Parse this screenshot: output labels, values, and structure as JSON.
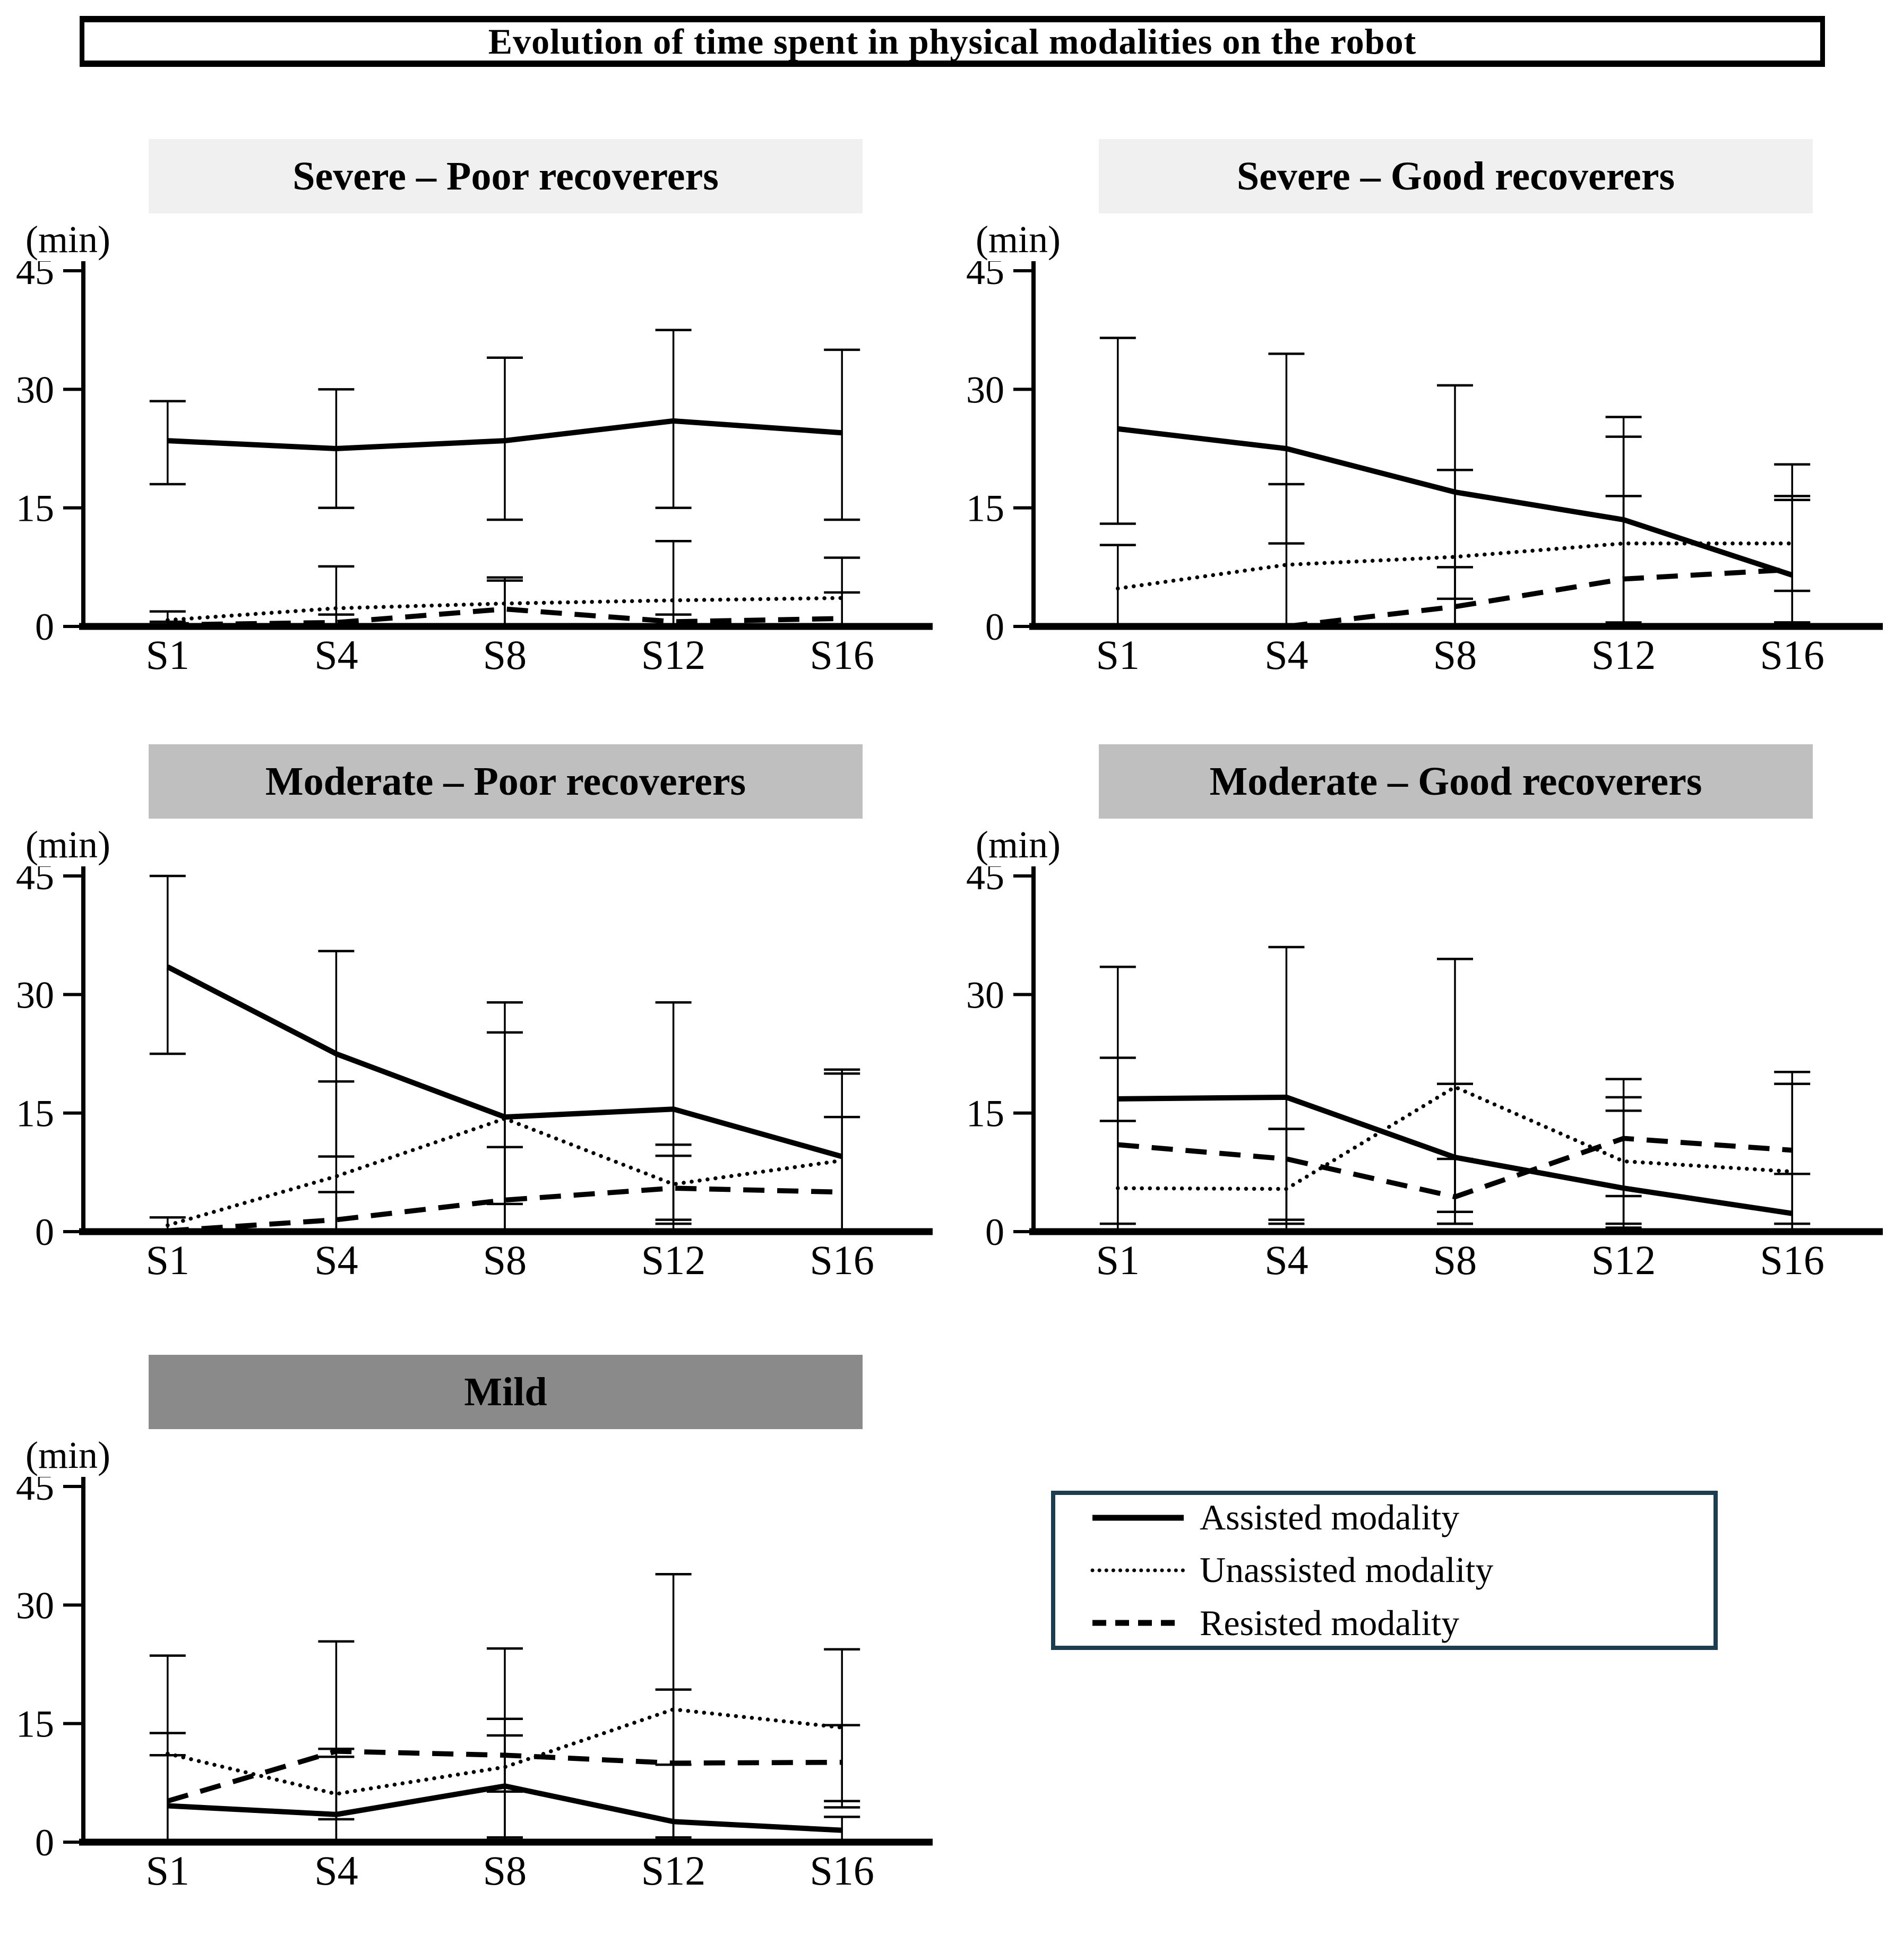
{
  "main_title": "Evolution of time spent in physical modalities on the robot",
  "y_axis": {
    "unit": "(min)",
    "ticks": [
      0,
      15,
      30,
      45
    ],
    "max": 45
  },
  "x_labels": [
    "S1",
    "S4",
    "S8",
    "S12",
    "S16"
  ],
  "colors": {
    "line": "#000000",
    "severe_title_bg": "#f0f0f0",
    "moderate_title_bg": "#bfbfbf",
    "mild_title_bg": "#8a8a8a",
    "legend_border": "#1c3c50"
  },
  "legend": {
    "items": [
      {
        "name": "assisted",
        "label": "Assisted modality",
        "line_style": "solid"
      },
      {
        "name": "unassisted",
        "label": "Unassisted modality",
        "line_style": "dotted"
      },
      {
        "name": "resisted",
        "label": "Resisted modality",
        "line_style": "dashed"
      }
    ]
  },
  "chart_data": [
    {
      "type": "line",
      "title": "Severe – Poor recoverers",
      "title_bg": "#f0f0f0",
      "xlabel": "",
      "ylabel": "(min)",
      "ylim": [
        0,
        45
      ],
      "categories": [
        "S1",
        "S4",
        "S8",
        "S12",
        "S16"
      ],
      "series": [
        {
          "name": "Assisted modality",
          "line_style": "solid",
          "values": [
            23.5,
            22.5,
            23.5,
            26,
            24.5
          ],
          "err_lo": [
            18,
            15,
            13.5,
            15,
            13.5
          ],
          "err_hi": [
            28.5,
            30,
            34,
            37.5,
            35
          ]
        },
        {
          "name": "Unassisted modality",
          "line_style": "dotted",
          "values": [
            0.8,
            2.3,
            2.9,
            3.3,
            3.6
          ],
          "err_lo": [
            0,
            0,
            0,
            0,
            0
          ],
          "err_hi": [
            1.9,
            7.6,
            6.2,
            10.8,
            8.7
          ]
        },
        {
          "name": "Resisted modality",
          "line_style": "dashed",
          "values": [
            0.2,
            0.5,
            2.2,
            0.6,
            1.0
          ],
          "err_lo": [
            0,
            0,
            0,
            0,
            0
          ],
          "err_hi": [
            0.6,
            1.5,
            5.8,
            1.5,
            4.3
          ]
        }
      ]
    },
    {
      "type": "line",
      "title": "Severe – Good recoverers",
      "title_bg": "#f0f0f0",
      "xlabel": "",
      "ylabel": "(min)",
      "ylim": [
        0,
        45
      ],
      "categories": [
        "S1",
        "S4",
        "S8",
        "S12",
        "S16"
      ],
      "series": [
        {
          "name": "Assisted modality",
          "line_style": "solid",
          "values": [
            25,
            22.5,
            17,
            13.5,
            6.5
          ],
          "err_lo": [
            13,
            10.5,
            3.5,
            0.5,
            0.5
          ],
          "err_hi": [
            36.5,
            34.5,
            30.5,
            26.5,
            20.5
          ]
        },
        {
          "name": "Unassisted modality",
          "line_style": "dotted",
          "values": [
            4.8,
            7.8,
            8.8,
            10.5,
            10.5
          ],
          "err_lo": [
            0,
            0,
            0,
            0,
            4.5
          ],
          "err_hi": [
            10.3,
            18,
            19.8,
            24,
            16.5
          ]
        },
        {
          "name": "Resisted modality",
          "line_style": "dashed",
          "values": [
            null,
            0,
            2.5,
            6,
            7.2
          ],
          "err_lo": [
            null,
            null,
            0,
            0,
            0.5
          ],
          "err_hi": [
            null,
            null,
            7.5,
            16.5,
            16
          ]
        }
      ]
    },
    {
      "type": "line",
      "title": "Moderate – Poor recoverers",
      "title_bg": "#bfbfbf",
      "xlabel": "",
      "ylabel": "(min)",
      "ylim": [
        0,
        45
      ],
      "categories": [
        "S1",
        "S4",
        "S8",
        "S12",
        "S16"
      ],
      "series": [
        {
          "name": "Assisted modality",
          "line_style": "solid",
          "values": [
            33.5,
            22.5,
            14.5,
            15.5,
            9.5
          ],
          "err_lo": [
            22.5,
            9.5,
            0,
            1.5,
            0
          ],
          "err_hi": [
            45,
            35.5,
            29,
            29,
            20.5
          ]
        },
        {
          "name": "Unassisted modality",
          "line_style": "dotted",
          "values": [
            0.8,
            7,
            14.3,
            6,
            9
          ],
          "err_lo": [
            0,
            0,
            3.5,
            1,
            0
          ],
          "err_hi": [
            1.8,
            19,
            25.2,
            11,
            20
          ]
        },
        {
          "name": "Resisted modality",
          "line_style": "dashed",
          "values": [
            0.1,
            1.5,
            4,
            5.5,
            5
          ],
          "err_lo": [
            0,
            0,
            0,
            0,
            0
          ],
          "err_hi": [
            null,
            5,
            10.7,
            9.6,
            14.5
          ]
        }
      ]
    },
    {
      "type": "line",
      "title": "Moderate – Good recoverers",
      "title_bg": "#bfbfbf",
      "xlabel": "",
      "ylabel": "(min)",
      "ylim": [
        0,
        45
      ],
      "categories": [
        "S1",
        "S4",
        "S8",
        "S12",
        "S16"
      ],
      "series": [
        {
          "name": "Assisted modality",
          "line_style": "solid",
          "values": [
            16.8,
            17,
            9.4,
            5.5,
            2.3
          ],
          "err_lo": [
            1,
            1,
            1,
            0.5,
            0
          ],
          "err_hi": [
            33.5,
            36,
            18.7,
            15.3,
            7.3
          ]
        },
        {
          "name": "Unassisted modality",
          "line_style": "dotted",
          "values": [
            5.5,
            5.4,
            18.3,
            8.9,
            7.6
          ],
          "err_lo": [
            0,
            0,
            2.5,
            1,
            0
          ],
          "err_hi": [
            14,
            13,
            34.5,
            17,
            18.7
          ]
        },
        {
          "name": "Resisted modality",
          "line_style": "dashed",
          "values": [
            11,
            9.2,
            4.4,
            11.8,
            10.3
          ],
          "err_lo": [
            0,
            1.5,
            1,
            4.5,
            1
          ],
          "err_hi": [
            22,
            13,
            9.2,
            19.3,
            20.2
          ]
        }
      ]
    },
    {
      "type": "line",
      "title": "Mild",
      "title_bg": "#8a8a8a",
      "xlabel": "",
      "ylabel": "(min)",
      "ylim": [
        0,
        45
      ],
      "categories": [
        "S1",
        "S4",
        "S8",
        "S12",
        "S16"
      ],
      "series": [
        {
          "name": "Assisted modality",
          "line_style": "solid",
          "values": [
            4.6,
            3.5,
            7.1,
            2.6,
            1.5
          ],
          "err_lo": [
            0,
            0,
            0.6,
            0,
            0
          ],
          "err_hi": [
            11,
            10.8,
            13.5,
            9.8,
            3.2
          ]
        },
        {
          "name": "Unassisted modality",
          "line_style": "dotted",
          "values": [
            11.2,
            6.1,
            9.5,
            16.8,
            14.5
          ],
          "err_lo": [
            0,
            2.9,
            0,
            0,
            4.4
          ],
          "err_hi": [
            23.6,
            11.8,
            24.5,
            33.9,
            24.4
          ]
        },
        {
          "name": "Resisted modality",
          "line_style": "dashed",
          "values": [
            5.2,
            11.5,
            11,
            10,
            10.1
          ],
          "err_lo": [
            0,
            0,
            6.4,
            0.6,
            5.2
          ],
          "err_hi": [
            13.8,
            25.4,
            15.6,
            19.3,
            14.8
          ]
        }
      ]
    }
  ]
}
